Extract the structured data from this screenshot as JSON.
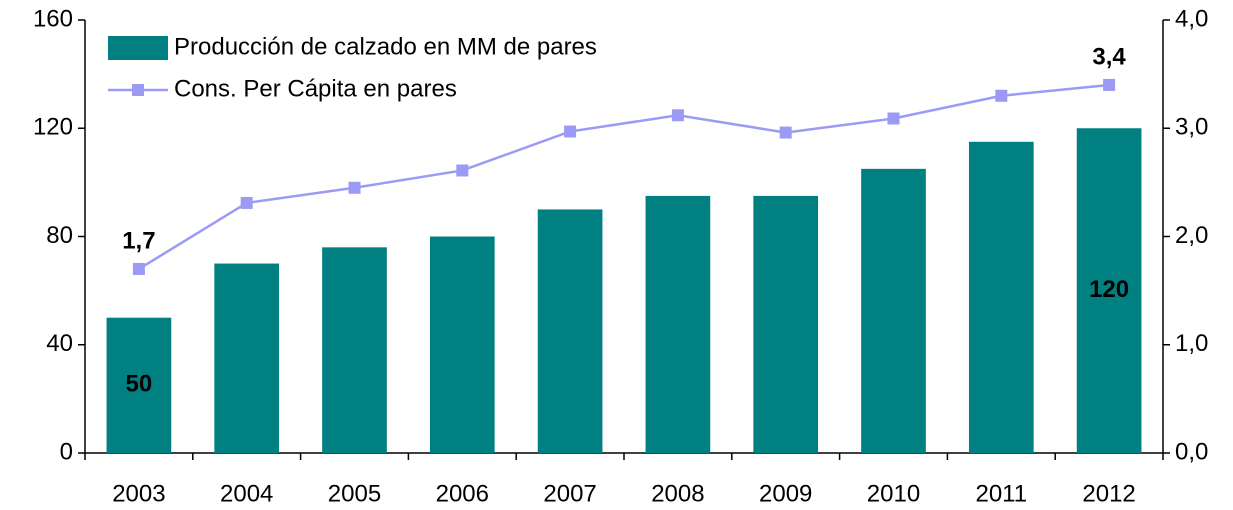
{
  "chart_data": {
    "type": "bar_line",
    "categories": [
      "2003",
      "2004",
      "2005",
      "2006",
      "2007",
      "2008",
      "2009",
      "2010",
      "2011",
      "2012"
    ],
    "series": [
      {
        "name": "Producción de calzado en MM de pares",
        "type": "bar",
        "color": "#008080",
        "values": [
          50,
          70,
          76,
          80,
          90,
          95,
          95,
          105,
          115,
          120
        ],
        "value_labels": [
          "50",
          null,
          null,
          null,
          null,
          null,
          null,
          null,
          null,
          "120"
        ]
      },
      {
        "name": "Cons. Per Cápita en pares",
        "type": "line",
        "axis": "y2",
        "color": "#9b9bf5",
        "values": [
          1.7,
          2.31,
          2.45,
          2.61,
          2.97,
          3.12,
          2.96,
          3.09,
          3.3,
          3.4
        ],
        "value_labels": [
          "1,7",
          null,
          null,
          null,
          null,
          null,
          null,
          null,
          null,
          "3,4"
        ]
      }
    ],
    "ylim": [
      0,
      160
    ],
    "yticks": [
      0,
      40,
      80,
      120,
      160
    ],
    "y2lim": [
      0,
      4
    ],
    "y2ticks": [
      {
        "value": 0,
        "label": "0,0"
      },
      {
        "value": 1,
        "label": "1,0"
      },
      {
        "value": 2,
        "label": "2,0"
      },
      {
        "value": 3,
        "label": "3,0"
      },
      {
        "value": 4,
        "label": "4,0"
      }
    ],
    "legend": "upper left"
  }
}
